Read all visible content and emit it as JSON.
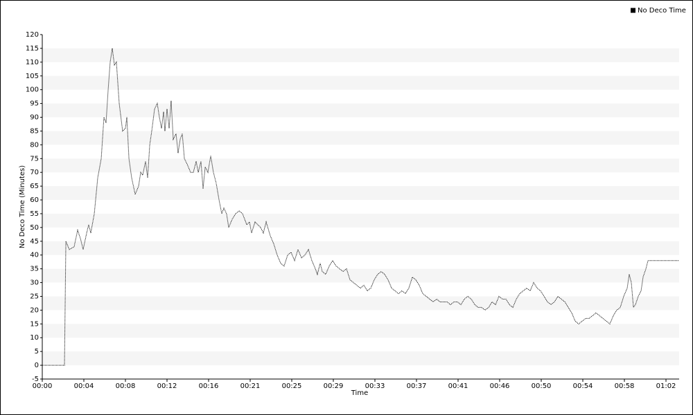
{
  "chart_data": {
    "type": "line",
    "xlabel": "Time",
    "ylabel": "No Deco Time (Minutes)",
    "legend": "top-right",
    "grid": "bands",
    "x": [
      0,
      2.21,
      2.35,
      2.69,
      3.17,
      3.52,
      3.8,
      4.07,
      4.42,
      4.62,
      4.83,
      5.18,
      5.52,
      5.87,
      6.14,
      6.35,
      6.56,
      6.76,
      6.97,
      7.18,
      7.38,
      7.66,
      8.0,
      8.28,
      8.42,
      8.63,
      8.9,
      9.25,
      9.59,
      9.8,
      10.0,
      10.28,
      10.49,
      10.7,
      10.9,
      11.18,
      11.45,
      11.66,
      11.87,
      12.08,
      12.21,
      12.42,
      12.63,
      12.83,
      13.04,
      13.32,
      13.52,
      13.73,
      13.94,
      14.15,
      14.42,
      14.77,
      15.04,
      15.32,
      15.53,
      15.8,
      16.01,
      16.22,
      16.49,
      16.77,
      17.04,
      17.32,
      17.6,
      17.87,
      18.08,
      18.35,
      18.56,
      18.91,
      19.25,
      19.6,
      19.94,
      20.36,
      20.63,
      20.84,
      21.18,
      21.46,
      21.74,
      22.01,
      22.29,
      22.7,
      23.05,
      23.39,
      23.74,
      24.08,
      24.43,
      24.77,
      25.12,
      25.46,
      25.81,
      26.15,
      26.5,
      26.84,
      27.19,
      27.39,
      27.67,
      27.88,
      28.22,
      28.57,
      28.91,
      29.26,
      29.6,
      29.95,
      30.29,
      30.64,
      30.98,
      31.33,
      31.67,
      32.02,
      32.36,
      32.71,
      33.05,
      33.4,
      33.74,
      34.09,
      34.43,
      34.78,
      35.12,
      35.47,
      35.81,
      36.16,
      36.5,
      36.85,
      37.19,
      37.54,
      37.88,
      38.23,
      38.57,
      38.92,
      39.26,
      39.61,
      39.95,
      40.3,
      40.64,
      40.99,
      41.33,
      41.68,
      42.02,
      42.37,
      42.71,
      43.06,
      43.4,
      43.75,
      44.09,
      44.44,
      44.78,
      45.13,
      45.47,
      45.82,
      46.16,
      46.51,
      46.85,
      47.2,
      47.54,
      47.89,
      48.23,
      48.58,
      48.92,
      49.27,
      49.61,
      49.96,
      50.3,
      50.65,
      50.99,
      51.34,
      51.68,
      52.03,
      52.37,
      52.72,
      53.06,
      53.41,
      53.75,
      54.1,
      54.44,
      54.79,
      55.13,
      55.48,
      55.82,
      56.17,
      56.51,
      56.86,
      57.2,
      57.55,
      57.89,
      58.24,
      58.44,
      58.65,
      58.86,
      59.06,
      59.34,
      59.62,
      59.82,
      60.1,
      60.31,
      63.41
    ],
    "series": [
      {
        "name": "No Deco Time",
        "color": "#000000",
        "values": [
          0,
          0,
          45,
          42,
          43,
          49,
          46,
          42,
          48,
          51,
          48,
          55,
          68,
          75,
          90,
          88,
          100,
          110,
          115,
          109,
          110,
          95,
          85,
          86,
          90,
          75,
          68,
          62,
          65,
          70,
          69,
          74,
          68,
          80,
          85,
          93,
          95,
          90,
          86,
          92,
          85,
          93,
          86,
          96,
          82,
          84,
          77,
          82,
          84,
          75,
          73,
          70,
          70,
          74,
          70,
          74,
          64,
          72,
          70,
          76,
          70,
          66,
          60,
          55,
          57,
          55,
          50,
          53,
          55,
          56,
          55,
          51,
          52,
          48,
          52,
          51,
          50,
          48,
          52,
          47,
          44,
          40,
          37,
          36,
          40,
          41,
          38,
          42,
          39,
          40,
          42,
          38,
          35,
          33,
          37,
          34,
          33,
          36,
          38,
          36,
          35,
          34,
          35,
          31,
          30,
          29,
          28,
          29,
          27,
          28,
          31,
          33,
          34,
          33,
          31,
          28,
          27,
          26,
          27,
          26,
          28,
          32,
          31,
          29,
          26,
          25,
          24,
          23,
          24,
          23,
          23,
          23,
          22,
          23,
          23,
          22,
          24,
          25,
          24,
          22,
          21,
          21,
          20,
          21,
          23,
          22,
          25,
          24,
          24,
          22,
          21,
          24,
          26,
          27,
          28,
          27,
          30,
          28,
          27,
          25,
          23,
          22,
          23,
          25,
          24,
          23,
          21,
          19,
          16,
          15,
          16,
          17,
          17,
          18,
          19,
          18,
          17,
          16,
          15,
          18,
          20,
          21,
          25,
          28,
          33,
          30,
          21,
          22,
          25,
          27,
          32,
          35,
          38,
          38
        ]
      }
    ],
    "xlim": [
      0,
      63.41
    ],
    "xticks": [
      {
        "value": 0,
        "label": "00:00"
      },
      {
        "value": 4.14,
        "label": "00:04"
      },
      {
        "value": 8.28,
        "label": "00:08"
      },
      {
        "value": 12.42,
        "label": "00:12"
      },
      {
        "value": 16.56,
        "label": "00:16"
      },
      {
        "value": 20.7,
        "label": "00:21"
      },
      {
        "value": 24.84,
        "label": "00:25"
      },
      {
        "value": 28.98,
        "label": "00:29"
      },
      {
        "value": 33.12,
        "label": "00:33"
      },
      {
        "value": 37.26,
        "label": "00:37"
      },
      {
        "value": 41.4,
        "label": "00:41"
      },
      {
        "value": 45.54,
        "label": "00:46"
      },
      {
        "value": 49.68,
        "label": "00:50"
      },
      {
        "value": 53.82,
        "label": "00:54"
      },
      {
        "value": 57.96,
        "label": "00:58"
      },
      {
        "value": 62.1,
        "label": "01:02"
      }
    ],
    "ylim": [
      -5,
      120
    ],
    "yticks": [
      -5,
      0,
      5,
      10,
      15,
      20,
      25,
      30,
      35,
      40,
      45,
      50,
      55,
      60,
      65,
      70,
      75,
      80,
      85,
      90,
      95,
      100,
      105,
      110,
      115,
      120
    ]
  }
}
